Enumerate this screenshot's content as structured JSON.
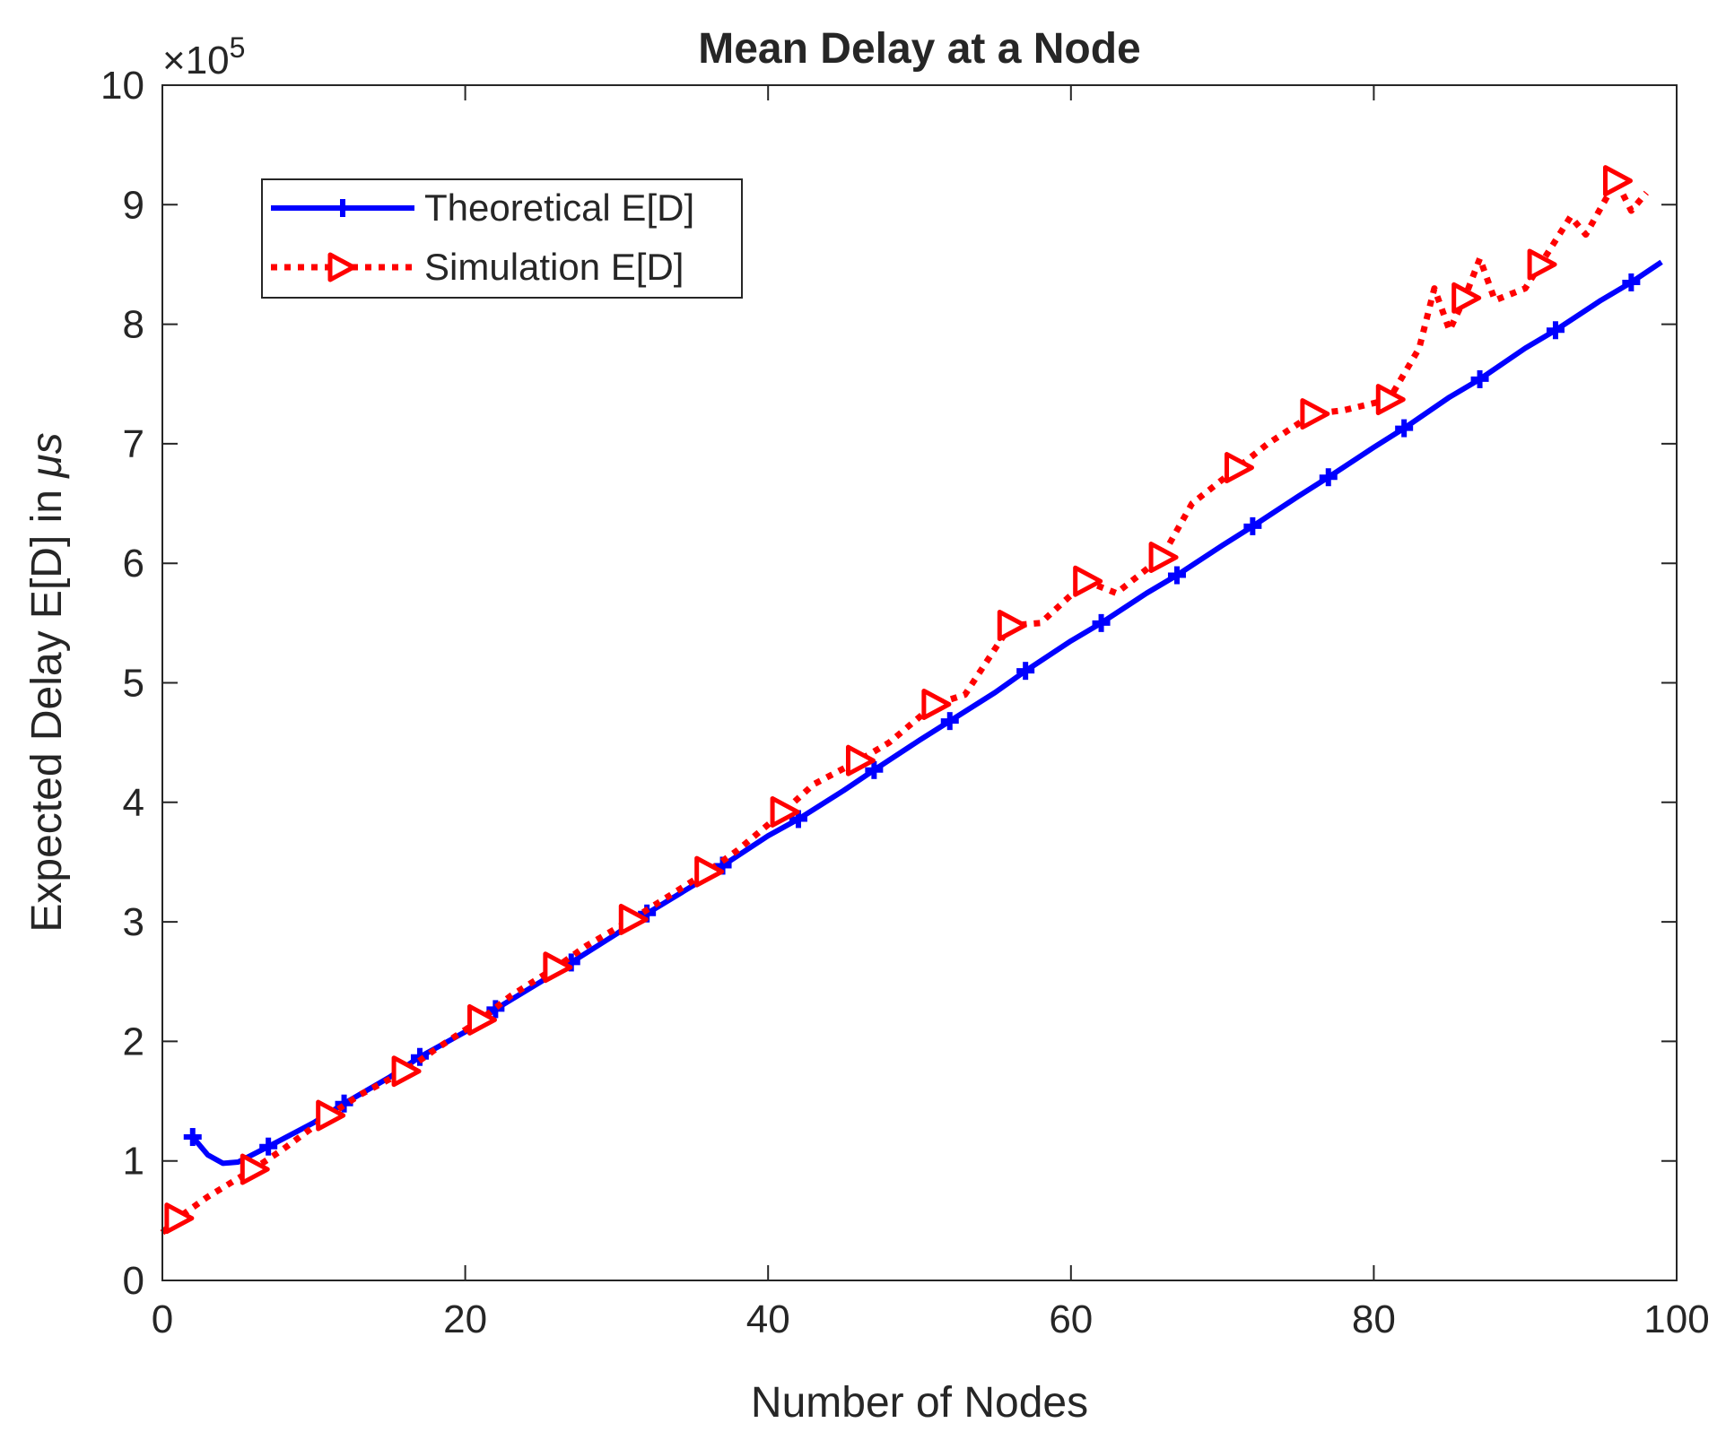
{
  "chart_data": {
    "type": "line",
    "title": "Mean Delay at a Node",
    "xlabel": "Number of Nodes",
    "ylabel": "Expected Delay E[D] in ",
    "ylabel_unit": "μs",
    "y_multiplier_base": "×10",
    "y_multiplier_exp": "5",
    "xlim": [
      0,
      100
    ],
    "ylim": [
      0,
      10
    ],
    "x_ticks": [
      0,
      20,
      40,
      60,
      80,
      100
    ],
    "y_ticks": [
      0,
      1,
      2,
      3,
      4,
      5,
      6,
      7,
      8,
      9,
      10
    ],
    "grid": false,
    "legend_position": "top-left",
    "series": [
      {
        "name": "Theoretical E[D]",
        "color": "#0000ff",
        "line_style": "solid",
        "marker": "plus",
        "x": [
          2,
          3,
          4,
          5,
          7,
          10,
          12,
          15,
          17,
          20,
          22,
          25,
          27,
          30,
          32,
          35,
          37,
          40,
          42,
          45,
          47,
          50,
          52,
          55,
          57,
          60,
          62,
          65,
          67,
          70,
          72,
          75,
          77,
          80,
          82,
          85,
          87,
          90,
          92,
          95,
          97,
          99
        ],
        "y": [
          1.2,
          1.05,
          0.98,
          0.99,
          1.12,
          1.32,
          1.48,
          1.7,
          1.87,
          2.08,
          2.27,
          2.5,
          2.66,
          2.9,
          3.07,
          3.3,
          3.47,
          3.72,
          3.86,
          4.1,
          4.27,
          4.52,
          4.68,
          4.92,
          5.1,
          5.35,
          5.5,
          5.75,
          5.9,
          6.15,
          6.31,
          6.56,
          6.72,
          6.97,
          7.13,
          7.39,
          7.54,
          7.8,
          7.95,
          8.2,
          8.35,
          8.52
        ],
        "marker_x": [
          2,
          7,
          12,
          17,
          22,
          27,
          32,
          37,
          42,
          47,
          52,
          57,
          62,
          67,
          72,
          77,
          82,
          87,
          92,
          97
        ],
        "marker_y": [
          1.2,
          1.12,
          1.48,
          1.87,
          2.27,
          2.66,
          3.07,
          3.47,
          3.86,
          4.27,
          4.68,
          5.1,
          5.5,
          5.9,
          6.31,
          6.72,
          7.13,
          7.54,
          7.95,
          8.35
        ]
      },
      {
        "name": "Simulation E[D]",
        "color": "#ff0000",
        "line_style": "dotted",
        "marker": "triangle-right",
        "x": [
          0,
          1,
          3,
          6,
          8,
          11,
          13,
          16,
          18,
          21,
          23,
          26,
          28,
          31,
          33,
          36,
          38,
          41,
          43,
          46,
          48,
          51,
          53,
          56,
          58,
          61,
          63,
          66,
          68,
          71,
          73,
          76,
          78,
          81,
          83,
          84,
          85,
          86,
          87,
          88,
          90,
          91,
          93,
          94,
          96,
          97,
          98
        ],
        "y": [
          0.4,
          0.52,
          0.7,
          0.93,
          1.1,
          1.38,
          1.55,
          1.75,
          1.93,
          2.18,
          2.38,
          2.62,
          2.8,
          3.02,
          3.18,
          3.42,
          3.6,
          3.92,
          4.15,
          4.35,
          4.5,
          4.82,
          4.9,
          5.48,
          5.5,
          5.85,
          5.75,
          6.05,
          6.5,
          6.8,
          7.0,
          7.25,
          7.28,
          7.37,
          7.8,
          8.3,
          7.95,
          8.22,
          8.55,
          8.2,
          8.3,
          8.5,
          8.9,
          8.75,
          9.2,
          8.95,
          9.1
        ],
        "marker_x": [
          1,
          6,
          11,
          16,
          21,
          26,
          31,
          36,
          41,
          46,
          51,
          56,
          61,
          66,
          71,
          76,
          81,
          86,
          91,
          96
        ],
        "marker_y": [
          0.52,
          0.93,
          1.38,
          1.75,
          2.18,
          2.62,
          3.02,
          3.42,
          3.92,
          4.35,
          4.82,
          5.48,
          5.85,
          6.05,
          6.8,
          7.25,
          7.37,
          8.22,
          8.5,
          9.2
        ]
      }
    ]
  }
}
